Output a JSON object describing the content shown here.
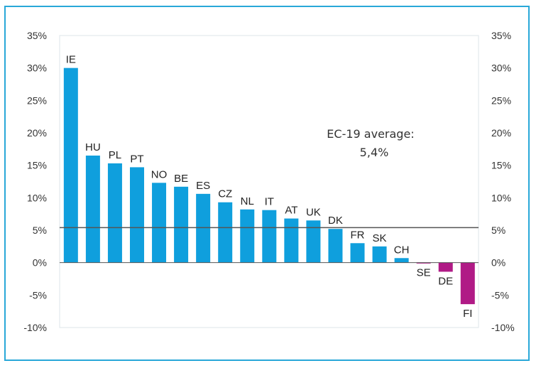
{
  "chart_data": {
    "type": "bar",
    "categories": [
      "IE",
      "HU",
      "PL",
      "PT",
      "NO",
      "BE",
      "ES",
      "CZ",
      "NL",
      "IT",
      "AT",
      "UK",
      "DK",
      "FR",
      "SK",
      "CH",
      "SE",
      "DE",
      "FI"
    ],
    "values": [
      30.0,
      16.5,
      15.3,
      14.7,
      12.3,
      11.7,
      10.6,
      9.3,
      8.2,
      8.1,
      6.8,
      6.5,
      5.2,
      3.0,
      2.5,
      0.7,
      -0.1,
      -1.4,
      -6.4
    ],
    "positive_color": "#0f9fdd",
    "negative_color": "#b01a86",
    "ylim": [
      -10,
      35
    ],
    "yticks": [
      "35%",
      "30%",
      "25%",
      "20%",
      "15%",
      "10%",
      "5%",
      "0%",
      "-5%",
      "-10%"
    ],
    "average": {
      "value": 5.4,
      "label_line1": "EC-19 average:",
      "label_line2": "5,4%"
    }
  }
}
